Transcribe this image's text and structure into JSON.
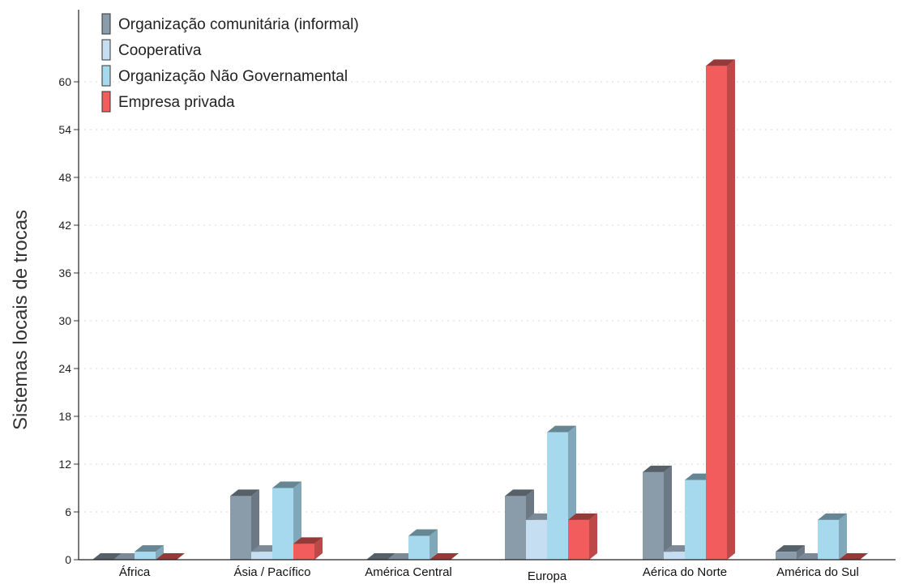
{
  "chart_data": {
    "type": "bar",
    "ylabel": "Sistemas locais de trocas",
    "xlabel": "",
    "ylim": [
      0,
      66
    ],
    "yticks": [
      0,
      6,
      12,
      18,
      24,
      30,
      36,
      42,
      48,
      54,
      60
    ],
    "grid": true,
    "legend_position": "top-left",
    "categories": [
      "África",
      "Ásia / Pacífico",
      "América Central",
      "Europa",
      "Aérica do Norte",
      "América do Sul"
    ],
    "series": [
      {
        "name": "Organização comunitária (informal)",
        "color": "#8a9baa",
        "values": [
          0,
          8,
          0,
          8,
          11,
          1
        ]
      },
      {
        "name": "Cooperativa",
        "color": "#c6def2",
        "values": [
          0,
          1,
          0,
          5,
          1,
          0
        ]
      },
      {
        "name": "Organização Não Governamental",
        "color": "#a6d8ee",
        "values": [
          1,
          9,
          3,
          16,
          10,
          5
        ]
      },
      {
        "name": "Empresa privada",
        "color": "#f25c5c",
        "values": [
          0,
          2,
          0,
          5,
          62,
          0
        ]
      }
    ]
  }
}
